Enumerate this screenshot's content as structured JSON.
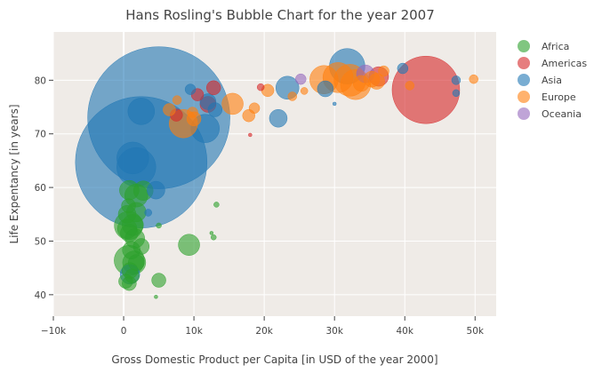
{
  "chart_data": {
    "type": "scatter",
    "subtype": "bubble",
    "title": "Hans Rosling's Bubble Chart for the year 2007",
    "xlabel": "Gross Domestic Product per Capita [in USD of the year 2000]",
    "ylabel": "Life Expentancy [in years]",
    "xlim": [
      -10000,
      53000
    ],
    "ylim": [
      36,
      89
    ],
    "x_ticks": [
      -10000,
      0,
      10000,
      20000,
      30000,
      40000,
      50000
    ],
    "x_tick_labels": [
      "−10k",
      "0",
      "10k",
      "20k",
      "30k",
      "40k",
      "50k"
    ],
    "y_ticks": [
      40,
      50,
      60,
      70,
      80
    ],
    "y_tick_labels": [
      "40",
      "50",
      "60",
      "70",
      "80"
    ],
    "grid": true,
    "legend_position": "right",
    "background_color": "#efebe7",
    "series": [
      {
        "name": "Africa",
        "color": "#2ca02c",
        "points": [
          {
            "x": 300,
            "y": 42.5,
            "size": 8
          },
          {
            "x": 800,
            "y": 42.1,
            "size": 8
          },
          {
            "x": 1200,
            "y": 43.5,
            "size": 8
          },
          {
            "x": 5000,
            "y": 42.7,
            "size": 8
          },
          {
            "x": 900,
            "y": 44.5,
            "size": 9
          },
          {
            "x": 1500,
            "y": 46.0,
            "size": 13
          },
          {
            "x": 800,
            "y": 46.4,
            "size": 17
          },
          {
            "x": 1800,
            "y": 46.0,
            "size": 9
          },
          {
            "x": 1100,
            "y": 48.3,
            "size": 10
          },
          {
            "x": 2500,
            "y": 49.0,
            "size": 9
          },
          {
            "x": 9300,
            "y": 49.3,
            "size": 12
          },
          {
            "x": 1600,
            "y": 50.5,
            "size": 11
          },
          {
            "x": 800,
            "y": 51.5,
            "size": 10
          },
          {
            "x": 500,
            "y": 52.3,
            "size": 11
          },
          {
            "x": 12500,
            "y": 51.5,
            "size": 2
          },
          {
            "x": 12800,
            "y": 50.7,
            "size": 3
          },
          {
            "x": 5000,
            "y": 52.9,
            "size": 3
          },
          {
            "x": 700,
            "y": 52.9,
            "size": 16
          },
          {
            "x": 1300,
            "y": 53.0,
            "size": 12
          },
          {
            "x": 500,
            "y": 55.0,
            "size": 10
          },
          {
            "x": 1800,
            "y": 55.4,
            "size": 11
          },
          {
            "x": 700,
            "y": 56.6,
            "size": 8
          },
          {
            "x": 1800,
            "y": 58.5,
            "size": 13
          },
          {
            "x": 2800,
            "y": 59.4,
            "size": 11
          },
          {
            "x": 800,
            "y": 59.5,
            "size": 11
          },
          {
            "x": 13200,
            "y": 56.8,
            "size": 3
          },
          {
            "x": 4600,
            "y": 39.6,
            "size": 2
          }
        ]
      },
      {
        "name": "Americas",
        "color": "#d62728",
        "points": [
          {
            "x": 43000,
            "y": 78.2,
            "size": 38
          },
          {
            "x": 12800,
            "y": 78.6,
            "size": 8
          },
          {
            "x": 19500,
            "y": 78.7,
            "size": 4
          },
          {
            "x": 36300,
            "y": 80.7,
            "size": 11
          },
          {
            "x": 18000,
            "y": 69.8,
            "size": 2
          },
          {
            "x": 10500,
            "y": 77.3,
            "size": 7
          },
          {
            "x": 12000,
            "y": 75.5,
            "size": 9
          },
          {
            "x": 7500,
            "y": 73.5,
            "size": 7
          }
        ]
      },
      {
        "name": "Asia",
        "color": "#1f77b4",
        "points": [
          {
            "x": 5000,
            "y": 73.0,
            "size": 80
          },
          {
            "x": 2500,
            "y": 64.7,
            "size": 74
          },
          {
            "x": 31800,
            "y": 82.6,
            "size": 20
          },
          {
            "x": 23300,
            "y": 78.6,
            "size": 13
          },
          {
            "x": 22000,
            "y": 72.9,
            "size": 10
          },
          {
            "x": 11600,
            "y": 71.0,
            "size": 16
          },
          {
            "x": 2500,
            "y": 74.2,
            "size": 15
          },
          {
            "x": 1800,
            "y": 63.8,
            "size": 22
          },
          {
            "x": 1300,
            "y": 65.5,
            "size": 18
          },
          {
            "x": 4600,
            "y": 59.5,
            "size": 10
          },
          {
            "x": 3500,
            "y": 55.3,
            "size": 4
          },
          {
            "x": 900,
            "y": 43.8,
            "size": 11
          },
          {
            "x": 47300,
            "y": 80.0,
            "size": 5
          },
          {
            "x": 47300,
            "y": 77.6,
            "size": 4
          },
          {
            "x": 39700,
            "y": 82.2,
            "size": 6
          },
          {
            "x": 9500,
            "y": 78.3,
            "size": 6
          },
          {
            "x": 28700,
            "y": 78.4,
            "size": 9
          },
          {
            "x": 30000,
            "y": 75.6,
            "size": 2
          },
          {
            "x": 12000,
            "y": 76.0,
            "size": 9
          },
          {
            "x": 13000,
            "y": 74.5,
            "size": 8
          }
        ]
      },
      {
        "name": "Europe",
        "color": "#ff7f0e",
        "points": [
          {
            "x": 32200,
            "y": 80.0,
            "size": 18
          },
          {
            "x": 30500,
            "y": 80.5,
            "size": 17
          },
          {
            "x": 33000,
            "y": 79.2,
            "size": 17
          },
          {
            "x": 28500,
            "y": 80.1,
            "size": 16
          },
          {
            "x": 8500,
            "y": 71.9,
            "size": 16
          },
          {
            "x": 15500,
            "y": 75.6,
            "size": 12
          },
          {
            "x": 36000,
            "y": 79.8,
            "size": 9
          },
          {
            "x": 37000,
            "y": 81.7,
            "size": 6
          },
          {
            "x": 33800,
            "y": 79.4,
            "size": 9
          },
          {
            "x": 35300,
            "y": 80.2,
            "size": 9
          },
          {
            "x": 40700,
            "y": 79.0,
            "size": 5
          },
          {
            "x": 49800,
            "y": 80.2,
            "size": 5
          },
          {
            "x": 20500,
            "y": 78.1,
            "size": 7
          },
          {
            "x": 17800,
            "y": 73.4,
            "size": 7
          },
          {
            "x": 24000,
            "y": 77.0,
            "size": 5
          },
          {
            "x": 18600,
            "y": 74.8,
            "size": 6
          },
          {
            "x": 10000,
            "y": 72.8,
            "size": 8
          },
          {
            "x": 6500,
            "y": 74.5,
            "size": 7
          },
          {
            "x": 25700,
            "y": 78.0,
            "size": 4
          },
          {
            "x": 9800,
            "y": 74.0,
            "size": 6
          },
          {
            "x": 7600,
            "y": 76.3,
            "size": 5
          }
        ]
      },
      {
        "name": "Oceania",
        "color": "#9467bd",
        "points": [
          {
            "x": 34400,
            "y": 81.2,
            "size": 10
          },
          {
            "x": 25200,
            "y": 80.2,
            "size": 6
          }
        ]
      }
    ]
  }
}
